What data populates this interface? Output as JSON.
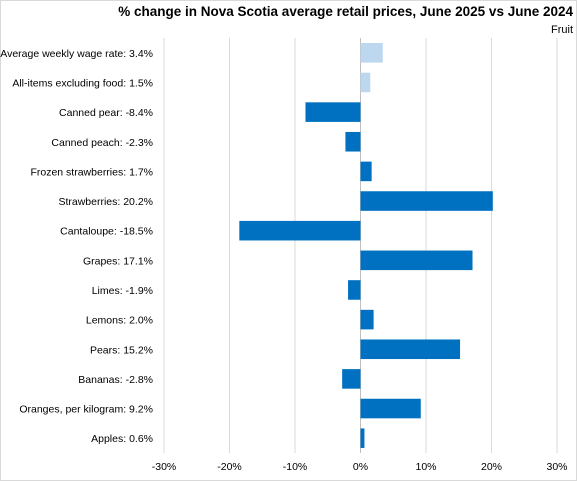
{
  "chart_data": {
    "type": "bar",
    "orientation": "horizontal",
    "title": "% change in Nova Scotia average retail prices, June 2025 vs June 2024",
    "subtitle": "Fruit",
    "xlim": [
      -30,
      30
    ],
    "ticks": [
      -30,
      -20,
      -10,
      0,
      10,
      20,
      30
    ],
    "tick_labels": [
      "-30%",
      "-20%",
      "-10%",
      "0%",
      "10%",
      "20%",
      "30%"
    ],
    "grid": true,
    "legend": "none",
    "categories": [
      "Average weekly wage rate: 3.4%",
      "All-items excluding food: 1.5%",
      "Canned pear: -8.4%",
      "Canned peach: -2.3%",
      "Frozen strawberries: 1.7%",
      "Strawberries: 20.2%",
      "Cantaloupe: -18.5%",
      "Grapes: 17.1%",
      "Limes: -1.9%",
      "Lemons: 2.0%",
      "Pears: 15.2%",
      "Bananas: -2.8%",
      "Oranges, per kilogram: 9.2%",
      "Apples: 0.6%"
    ],
    "values": [
      3.4,
      1.5,
      -8.4,
      -2.3,
      1.7,
      20.2,
      -18.5,
      17.1,
      -1.9,
      2.0,
      15.2,
      -2.8,
      9.2,
      0.6
    ],
    "bar_colors": [
      "#bdd7ee",
      "#bdd7ee",
      "#0070c0",
      "#0070c0",
      "#0070c0",
      "#0070c0",
      "#0070c0",
      "#0070c0",
      "#0070c0",
      "#0070c0",
      "#0070c0",
      "#0070c0",
      "#0070c0",
      "#0070c0"
    ],
    "colors": {
      "primary": "#0070c0",
      "reference": "#bdd7ee",
      "grid": "#d9d9d9"
    }
  }
}
